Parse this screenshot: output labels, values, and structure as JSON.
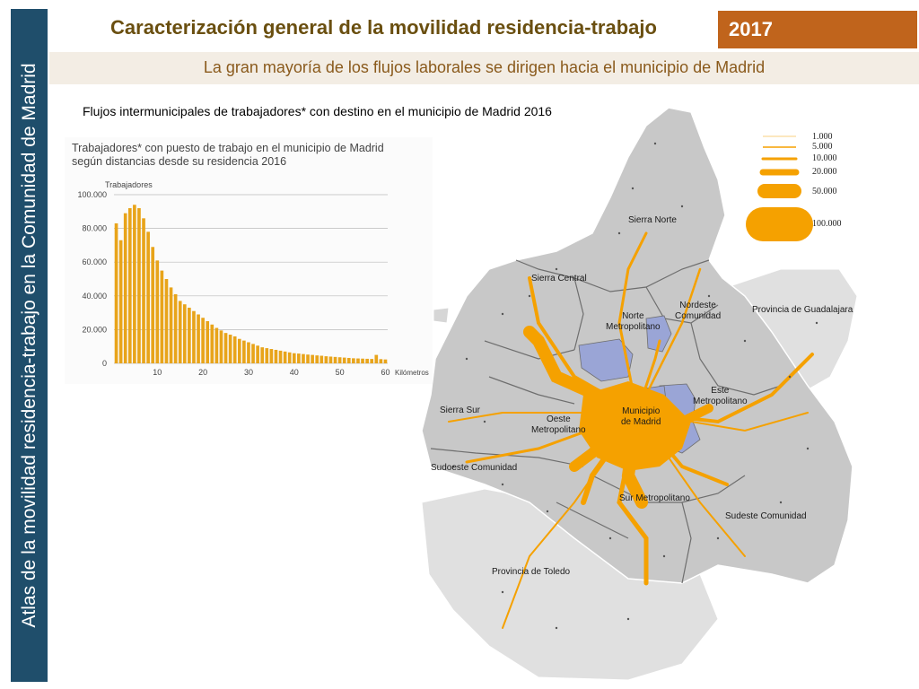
{
  "sidebar": {
    "text": "Atlas de la movilidad residencia-trabajo en la Comunidad de Madrid"
  },
  "header": {
    "title": "Caracterización general de la movilidad residencia-trabajo",
    "year": "2017"
  },
  "subtitle": "La gran mayoría de los flujos laborales se dirigen hacia el municipio de Madrid",
  "map_section": {
    "caption": "Flujos intermunicipales de trabajadores* con destino en el municipio de Madrid 2016",
    "legend": [
      {
        "label": "1.000",
        "value": 1000
      },
      {
        "label": "5.000",
        "value": 5000
      },
      {
        "label": "10.000",
        "value": 10000
      },
      {
        "label": "20.000",
        "value": 20000
      },
      {
        "label": "50.000",
        "value": 50000
      },
      {
        "label": "100.000",
        "value": 100000
      }
    ],
    "regions": [
      {
        "id": "sierra-norte",
        "label": "Sierra Norte"
      },
      {
        "id": "sierra-central",
        "label": "Sierra Central"
      },
      {
        "id": "nordeste-comunidad",
        "label": "Nordeste\nComunidad"
      },
      {
        "id": "provincia-guadalajara",
        "label": "Provincia de Guadalajara"
      },
      {
        "id": "norte-metropolitano",
        "label": "Norte\nMetropolitano"
      },
      {
        "id": "este-metropolitano",
        "label": "Este\nMetropolitano"
      },
      {
        "id": "sierra-sur",
        "label": "Sierra Sur"
      },
      {
        "id": "municipio-madrid",
        "label": "Municipio\nde Madrid"
      },
      {
        "id": "oeste-metropolitano",
        "label": "Oeste\nMetropolitano"
      },
      {
        "id": "sudoeste-comunidad",
        "label": "Sudoeste Comunidad"
      },
      {
        "id": "sur-metropolitano",
        "label": "Sur Metropolitano"
      },
      {
        "id": "sudeste-comunidad",
        "label": "Sudeste Comunidad"
      },
      {
        "id": "provincia-toledo",
        "label": "Provincia de Toledo"
      }
    ],
    "colors": {
      "flow": "#f5a100",
      "metro": "#9aa5d6",
      "region": "#c8c8c8",
      "outside": "#e0e0e0"
    }
  },
  "chart_data": {
    "type": "bar",
    "title": "Trabajadores* con puesto de trabajo en el municipio de Madrid según distancias desde su residencia 2016",
    "ylabel": "Trabajadores",
    "xlabel": "Kilómetros",
    "ylim": [
      0,
      100000
    ],
    "yticks": [
      0,
      20000,
      40000,
      60000,
      80000,
      100000
    ],
    "ytick_labels": [
      "0",
      "20.000",
      "40.000",
      "60.000",
      "80.000",
      "100.000"
    ],
    "xticks": [
      10,
      20,
      30,
      40,
      50,
      60
    ],
    "x": [
      1,
      2,
      3,
      4,
      5,
      6,
      7,
      8,
      9,
      10,
      11,
      12,
      13,
      14,
      15,
      16,
      17,
      18,
      19,
      20,
      21,
      22,
      23,
      24,
      25,
      26,
      27,
      28,
      29,
      30,
      31,
      32,
      33,
      34,
      35,
      36,
      37,
      38,
      39,
      40,
      41,
      42,
      43,
      44,
      45,
      46,
      47,
      48,
      49,
      50,
      51,
      52,
      53,
      54,
      55,
      56,
      57,
      58,
      59,
      60
    ],
    "values": [
      83000,
      73000,
      89000,
      92000,
      94000,
      92000,
      86000,
      78000,
      69000,
      61000,
      55000,
      50000,
      45000,
      41000,
      37000,
      35000,
      33000,
      31000,
      29000,
      27000,
      25000,
      23000,
      21000,
      19500,
      18000,
      17000,
      16000,
      14500,
      13500,
      12500,
      11500,
      10500,
      9500,
      9000,
      8500,
      8000,
      7500,
      7000,
      6500,
      6000,
      5800,
      5500,
      5200,
      5000,
      4700,
      4500,
      4200,
      4000,
      3800,
      3600,
      3400,
      3200,
      3000,
      2900,
      2800,
      2700,
      2600,
      5000,
      2500,
      2300
    ],
    "bar_color": "#e8a41a"
  }
}
